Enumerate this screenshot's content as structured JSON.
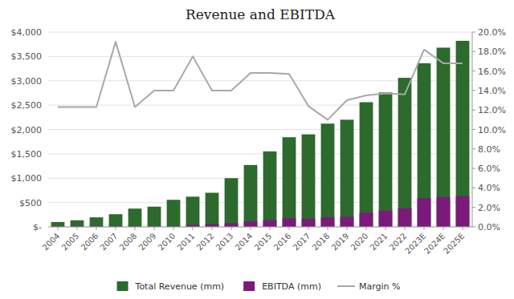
{
  "chart_data": {
    "type": "bar",
    "title": "Revenue and EBITDA",
    "categories": [
      "2004",
      "2005",
      "2006",
      "2007",
      "2008",
      "2009",
      "2010",
      "2011",
      "2012",
      "2013",
      "2014",
      "2015",
      "2016",
      "2017",
      "2018",
      "2019",
      "2020",
      "2021",
      "2022",
      "2023E",
      "2024E",
      "2025E"
    ],
    "series": [
      {
        "name": "Total Revenue (mm)",
        "color": "#2d6a2d",
        "values": [
          100,
          135,
          195,
          260,
          375,
          415,
          555,
          620,
          700,
          1000,
          1270,
          1550,
          1840,
          1900,
          2120,
          2200,
          2560,
          2760,
          3060,
          3360,
          3680,
          3820
        ]
      },
      {
        "name": "EBITDA (mm)",
        "color": "#7b1a7b",
        "values": [
          12,
          10,
          13,
          10,
          8,
          8,
          10,
          40,
          60,
          75,
          110,
          140,
          175,
          165,
          195,
          205,
          290,
          335,
          380,
          590,
          610,
          630
        ]
      },
      {
        "name": "Margin %",
        "type": "line",
        "axis": "y2",
        "color": "#a8a8a8",
        "values": [
          0.123,
          0.123,
          0.123,
          0.19,
          0.123,
          0.14,
          0.14,
          0.175,
          0.14,
          0.14,
          0.158,
          0.158,
          0.157,
          0.124,
          0.11,
          0.13,
          0.135,
          0.137,
          0.136,
          0.182,
          0.168,
          0.168
        ]
      }
    ],
    "ylim": [
      0,
      4000
    ],
    "yticks": [
      {
        "value": 0,
        "label": "$-"
      },
      {
        "value": 500,
        "label": "$500"
      },
      {
        "value": 1000,
        "label": "$1,000"
      },
      {
        "value": 1500,
        "label": "$1,500"
      },
      {
        "value": 2000,
        "label": "$2,000"
      },
      {
        "value": 2500,
        "label": "$2,500"
      },
      {
        "value": 3000,
        "label": "$3,000"
      },
      {
        "value": 3500,
        "label": "$3,500"
      },
      {
        "value": 4000,
        "label": "$4,000"
      }
    ],
    "y2lim": [
      0,
      0.2
    ],
    "y2ticks": [
      {
        "value": 0,
        "label": "0.0%"
      },
      {
        "value": 0.02,
        "label": "2.0%"
      },
      {
        "value": 0.04,
        "label": "4.0%"
      },
      {
        "value": 0.06,
        "label": "6.0%"
      },
      {
        "value": 0.08,
        "label": "8.0%"
      },
      {
        "value": 0.1,
        "label": "10.0%"
      },
      {
        "value": 0.12,
        "label": "12.0%"
      },
      {
        "value": 0.14,
        "label": "14.0%"
      },
      {
        "value": 0.16,
        "label": "16.0%"
      },
      {
        "value": 0.18,
        "label": "18.0%"
      },
      {
        "value": 0.2,
        "label": "20.0%"
      }
    ],
    "stacked": false,
    "grid": true,
    "legend": "bottom"
  }
}
